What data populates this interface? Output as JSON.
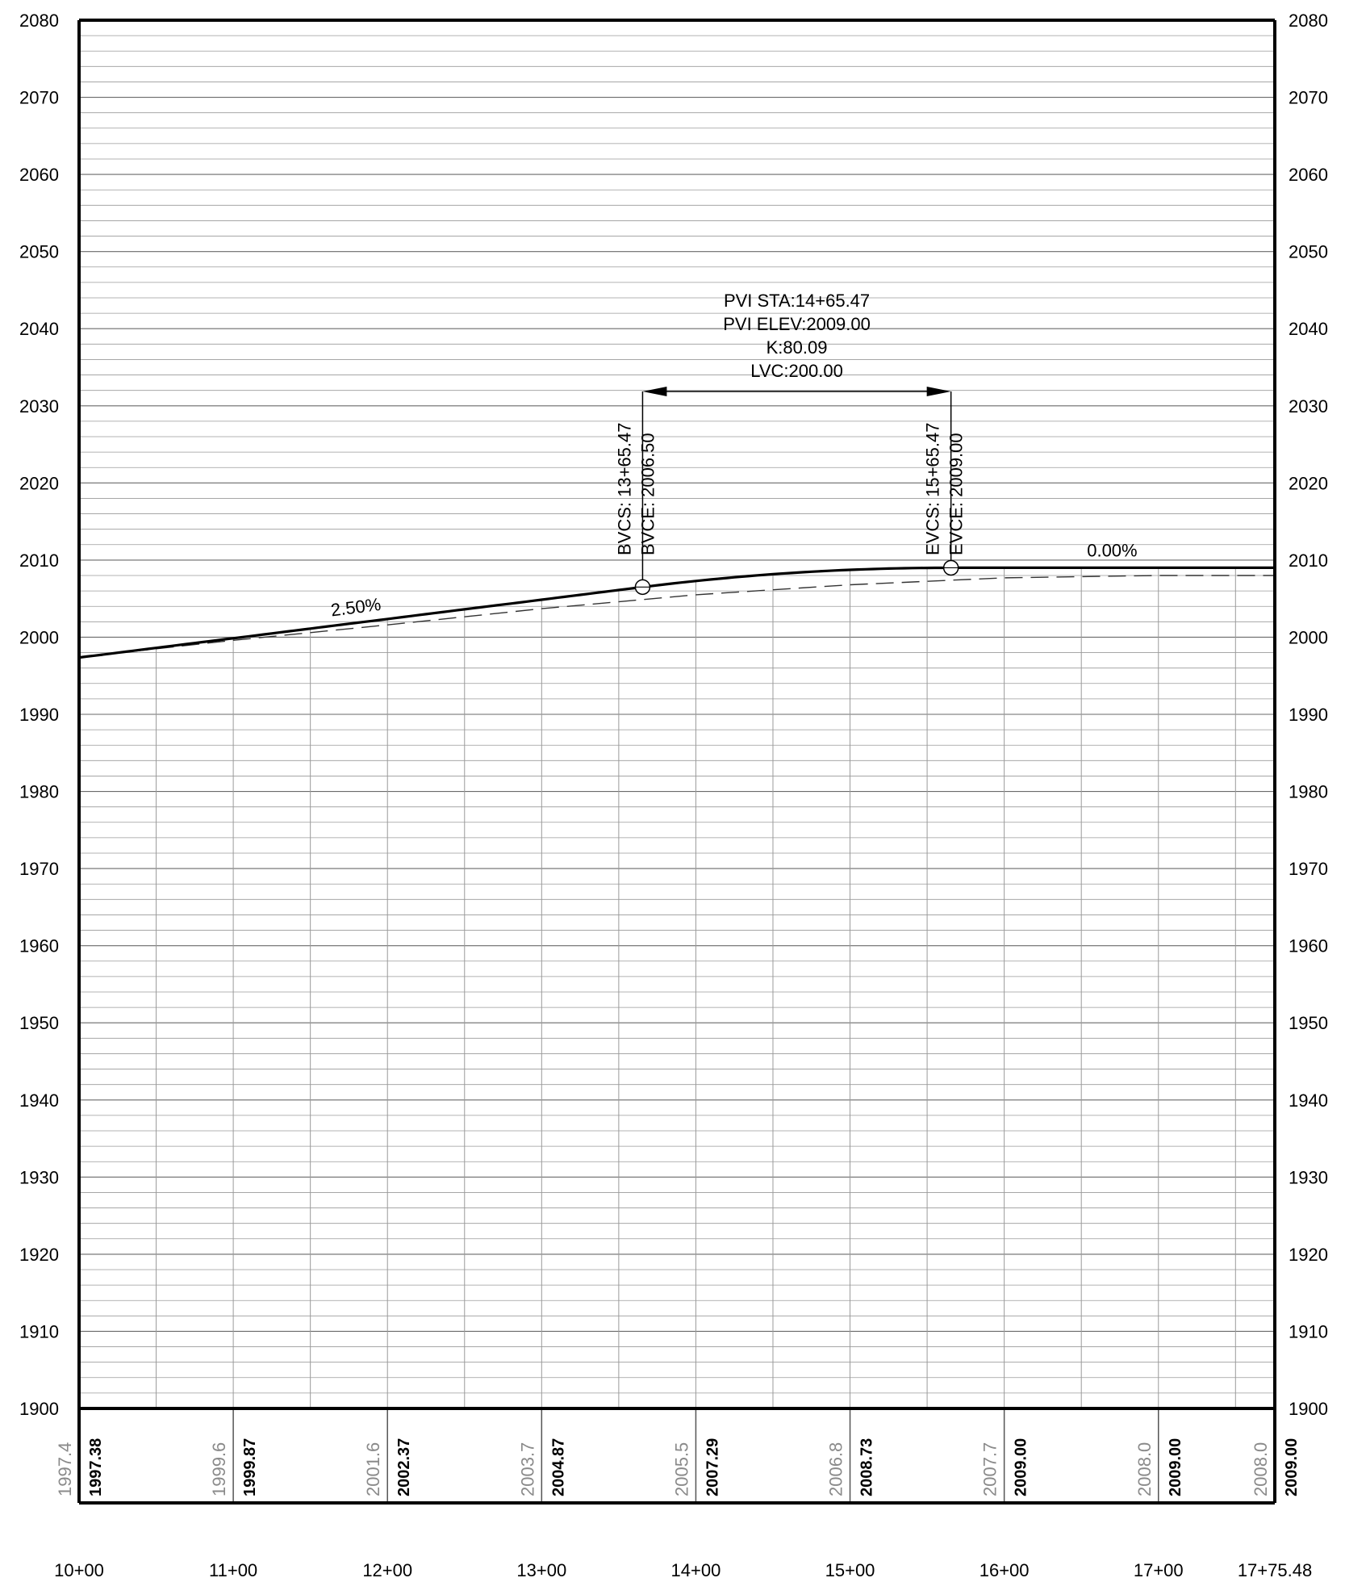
{
  "elevation_axis": {
    "min": 1900,
    "max": 2080,
    "major_step": 10,
    "minor_step": 2,
    "labels": [
      "2080",
      "2070",
      "2060",
      "2050",
      "2040",
      "2030",
      "2020",
      "2010",
      "2000",
      "1990",
      "1980",
      "1970",
      "1960",
      "1950",
      "1940",
      "1930",
      "1920",
      "1910",
      "1900"
    ]
  },
  "station_axis": {
    "start": 1000,
    "end": 1775.48,
    "labels": [
      {
        "sta": 1000,
        "text": "10+00"
      },
      {
        "sta": 1100,
        "text": "11+00"
      },
      {
        "sta": 1200,
        "text": "12+00"
      },
      {
        "sta": 1300,
        "text": "13+00"
      },
      {
        "sta": 1400,
        "text": "14+00"
      },
      {
        "sta": 1500,
        "text": "15+00"
      },
      {
        "sta": 1600,
        "text": "16+00"
      },
      {
        "sta": 1700,
        "text": "17+00"
      },
      {
        "sta": 1775.48,
        "text": "17+75.48"
      }
    ]
  },
  "elevation_band": [
    {
      "sta": 1000,
      "existing": "1997.4",
      "design": "1997.38"
    },
    {
      "sta": 1100,
      "existing": "1999.6",
      "design": "1999.87"
    },
    {
      "sta": 1200,
      "existing": "2001.6",
      "design": "2002.37"
    },
    {
      "sta": 1300,
      "existing": "2003.7",
      "design": "2004.87"
    },
    {
      "sta": 1400,
      "existing": "2005.5",
      "design": "2007.29"
    },
    {
      "sta": 1500,
      "existing": "2006.8",
      "design": "2008.73"
    },
    {
      "sta": 1600,
      "existing": "2007.7",
      "design": "2009.00"
    },
    {
      "sta": 1700,
      "existing": "2008.0",
      "design": "2009.00"
    },
    {
      "sta": 1775.48,
      "existing": "2008.0",
      "design": "2009.00"
    }
  ],
  "vertical_curve": {
    "pvi_sta": 1465.47,
    "pvi_elev": 2009.0,
    "lvc": 200.0,
    "g1": 2.5,
    "g2": 0.0,
    "bvc_sta": 1365.47,
    "bvc_elev": 2006.5,
    "evc_sta": 1565.47,
    "evc_elev": 2009.0,
    "pvi_label_lines": [
      "PVI STA:14+65.47",
      "PVI ELEV:2009.00",
      "K:80.09",
      "LVC:200.00"
    ],
    "bvc_label_lines": [
      "BVCS: 13+65.47",
      "BVCE: 2006.50"
    ],
    "evc_label_lines": [
      "EVCS: 15+65.47",
      "EVCE: 2009.00"
    ]
  },
  "grade_labels": {
    "left": "2.50%",
    "right": "0.00%"
  },
  "existing_ground": [
    {
      "sta": 1000,
      "elev": 1997.4
    },
    {
      "sta": 1100,
      "elev": 1999.6
    },
    {
      "sta": 1200,
      "elev": 2001.6
    },
    {
      "sta": 1300,
      "elev": 2003.7
    },
    {
      "sta": 1400,
      "elev": 2005.5
    },
    {
      "sta": 1500,
      "elev": 2006.8
    },
    {
      "sta": 1600,
      "elev": 2007.7
    },
    {
      "sta": 1700,
      "elev": 2008.0
    },
    {
      "sta": 1775.48,
      "elev": 2008.0
    }
  ]
}
